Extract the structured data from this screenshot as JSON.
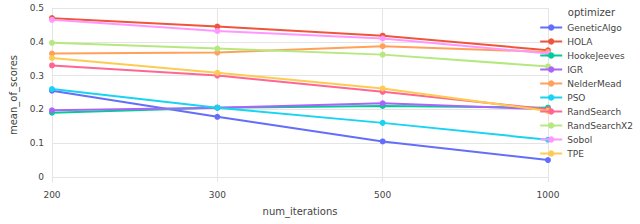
{
  "chart_data": {
    "type": "line",
    "x_label": "num_iterations",
    "y_label": "mean_of_scores",
    "legend_title": "optimizer",
    "legend": "right",
    "grid": true,
    "marker": "circle",
    "categories": [
      "200",
      "300",
      "500",
      "1000"
    ],
    "ylim": [
      -0.015,
      0.5
    ],
    "yticks": [
      0,
      0.1,
      0.2,
      0.3,
      0.4,
      0.5
    ],
    "series": [
      {
        "name": "GeneticAlgo",
        "color": "#636efa",
        "values": [
          0.255,
          0.178,
          0.105,
          0.05
        ]
      },
      {
        "name": "HOLA",
        "color": "#EF553B",
        "values": [
          0.47,
          0.445,
          0.418,
          0.375
        ]
      },
      {
        "name": "HookeJeeves",
        "color": "#00cc96",
        "values": [
          0.19,
          0.205,
          0.21,
          0.205
        ]
      },
      {
        "name": "IGR",
        "color": "#ab63fa",
        "values": [
          0.197,
          0.205,
          0.218,
          0.2
        ]
      },
      {
        "name": "NelderMead",
        "color": "#FFA15A",
        "values": [
          0.365,
          0.368,
          0.387,
          0.37
        ]
      },
      {
        "name": "PSO",
        "color": "#19d3f3",
        "values": [
          0.26,
          0.205,
          0.16,
          0.11
        ]
      },
      {
        "name": "RandSearch",
        "color": "#FF6692",
        "values": [
          0.33,
          0.3,
          0.252,
          0.2
        ]
      },
      {
        "name": "RandSearchX2",
        "color": "#B6E880",
        "values": [
          0.397,
          0.38,
          0.362,
          0.327
        ]
      },
      {
        "name": "Sobol",
        "color": "#FF97FF",
        "values": [
          0.465,
          0.432,
          0.41,
          0.365
        ]
      },
      {
        "name": "TPE",
        "color": "#FECB52",
        "values": [
          0.352,
          0.308,
          0.262,
          0.195
        ]
      }
    ]
  }
}
